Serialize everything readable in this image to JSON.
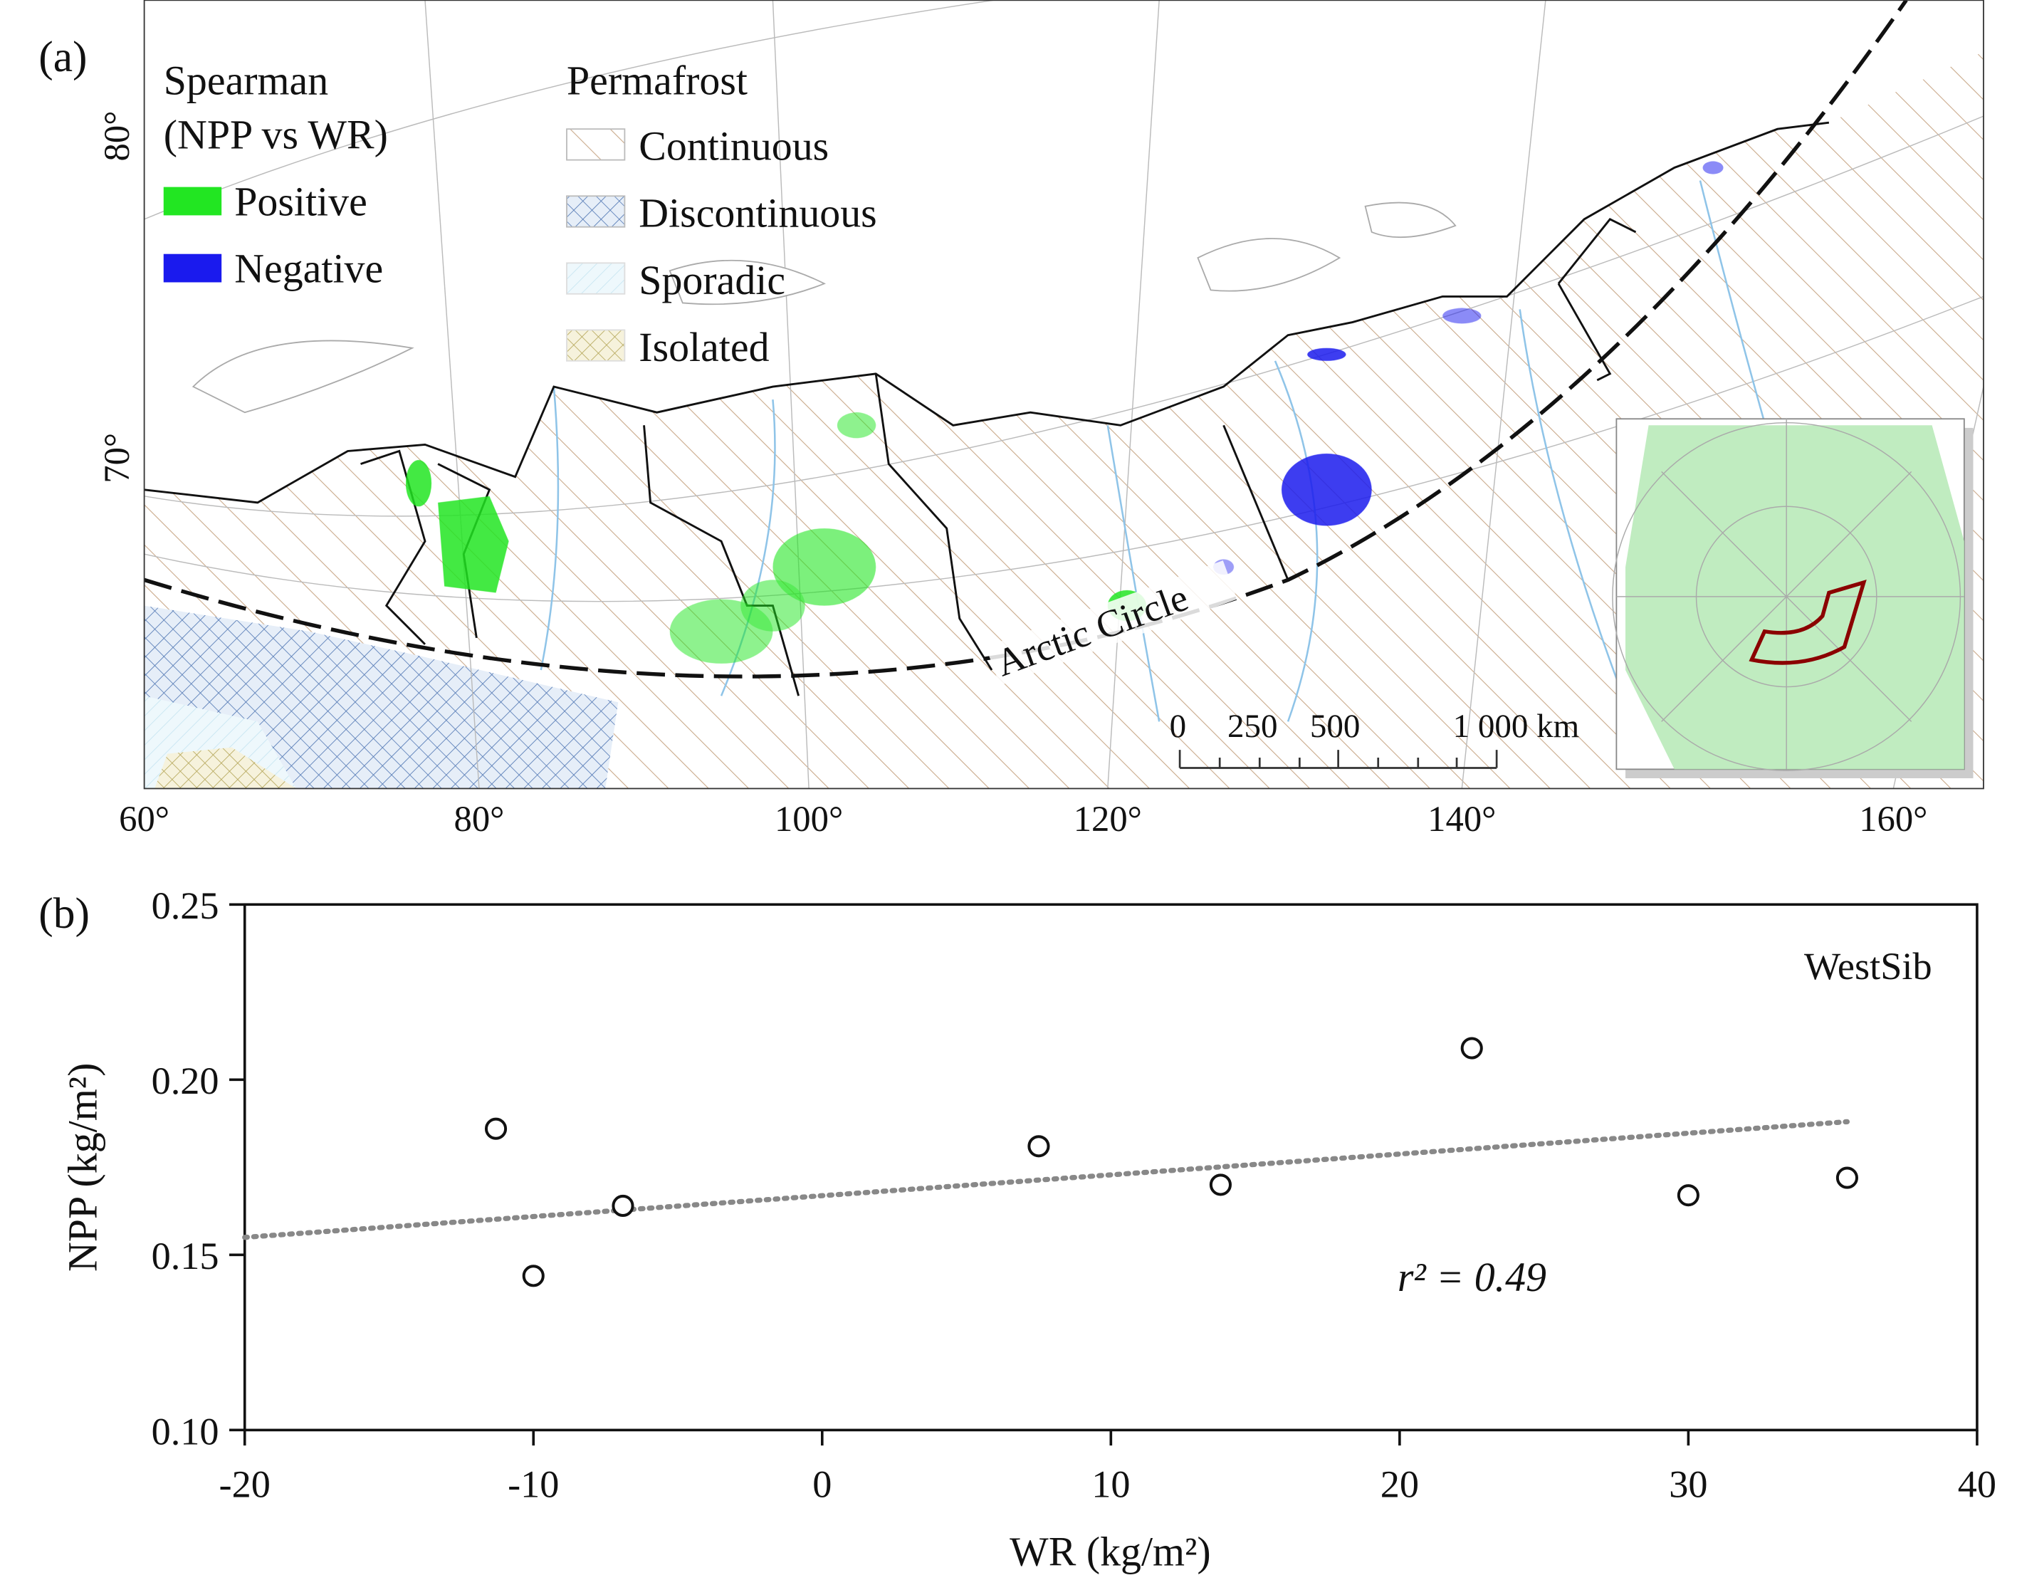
{
  "panel_a": {
    "label": "(a)",
    "legend_spearman": {
      "title_line1": "Spearman",
      "title_line2": "(NPP vs WR)",
      "items": [
        {
          "label": "Positive",
          "color": "#22e622"
        },
        {
          "label": "Negative",
          "color": "#1a1aee"
        }
      ]
    },
    "legend_permafrost": {
      "title": "Permafrost",
      "items": [
        {
          "label": "Continuous"
        },
        {
          "label": "Discontinuous"
        },
        {
          "label": "Sporadic"
        },
        {
          "label": "Isolated"
        }
      ]
    },
    "lat_labels": [
      "80°",
      "70°"
    ],
    "lon_labels": [
      "60°",
      "80°",
      "100°",
      "120°",
      "140°",
      "160°"
    ],
    "arctic_circle_label": "Arctic Circle",
    "scale_bar": {
      "labels": [
        "0",
        "250",
        "500",
        "1 000 km"
      ]
    }
  },
  "chart_data": {
    "type": "scatter",
    "panel_label": "(b)",
    "title": "WestSib",
    "xlabel": "WR (kg/m²)",
    "ylabel": "NPP (kg/m²)",
    "xlim": [
      -20,
      40
    ],
    "ylim": [
      0.1,
      0.25
    ],
    "xticks": [
      "-20",
      "-10",
      "0",
      "10",
      "20",
      "30",
      "40"
    ],
    "yticks": [
      "0.10",
      "0.15",
      "0.20",
      "0.25"
    ],
    "grid": false,
    "points": [
      {
        "x": -11.3,
        "y": 0.186
      },
      {
        "x": -10.0,
        "y": 0.144
      },
      {
        "x": -6.9,
        "y": 0.164
      },
      {
        "x": 7.5,
        "y": 0.181
      },
      {
        "x": 13.8,
        "y": 0.17
      },
      {
        "x": 22.5,
        "y": 0.209
      },
      {
        "x": 30.0,
        "y": 0.167
      },
      {
        "x": 35.5,
        "y": 0.172
      }
    ],
    "trendline": {
      "x": [
        -20,
        35.5
      ],
      "y": [
        0.155,
        0.188
      ]
    },
    "annotation": "r² = 0.49"
  }
}
